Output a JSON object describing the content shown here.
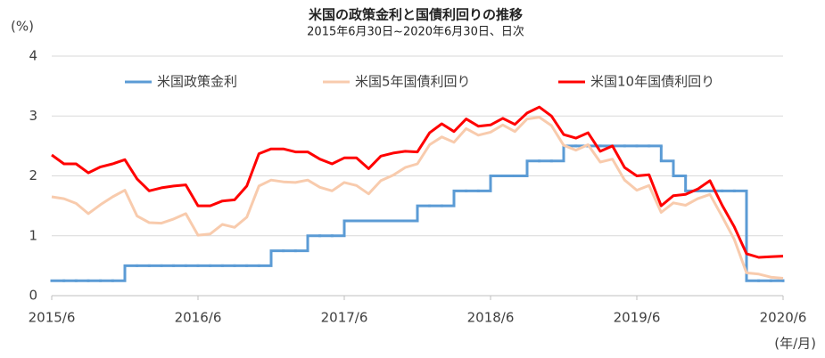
{
  "chart_data": {
    "type": "line",
    "title": "米国の政策金利と国債利回りの推移",
    "subtitle": "2015年6月30日~2020年6月30日、日次",
    "y_unit_label": "(%)",
    "x_unit_label": "(年/月)",
    "x": [
      "2015/6",
      null,
      null,
      null,
      null,
      null,
      null,
      null,
      null,
      null,
      null,
      null,
      "2016/6",
      null,
      null,
      null,
      null,
      null,
      null,
      null,
      null,
      null,
      null,
      null,
      "2017/6",
      null,
      null,
      null,
      null,
      null,
      null,
      null,
      null,
      null,
      null,
      null,
      "2018/6",
      null,
      null,
      null,
      null,
      null,
      null,
      null,
      null,
      null,
      null,
      null,
      "2019/6",
      null,
      null,
      null,
      null,
      null,
      null,
      null,
      null,
      null,
      null,
      null,
      "2020/6"
    ],
    "series": [
      {
        "name": "米国政策金利",
        "color": "#5b9bd5",
        "step": true,
        "values": [
          0.25,
          0.25,
          0.25,
          0.25,
          0.25,
          0.25,
          0.5,
          0.5,
          0.5,
          0.5,
          0.5,
          0.5,
          0.5,
          0.5,
          0.5,
          0.5,
          0.5,
          0.5,
          0.75,
          0.75,
          0.75,
          1.0,
          1.0,
          1.0,
          1.25,
          1.25,
          1.25,
          1.25,
          1.25,
          1.25,
          1.5,
          1.5,
          1.5,
          1.75,
          1.75,
          1.75,
          2.0,
          2.0,
          2.0,
          2.25,
          2.25,
          2.25,
          2.5,
          2.5,
          2.5,
          2.5,
          2.5,
          2.5,
          2.5,
          2.5,
          2.25,
          2.0,
          1.75,
          1.75,
          1.75,
          1.75,
          1.75,
          0.25,
          0.25,
          0.25,
          0.25
        ]
      },
      {
        "name": "米国5年国債利回り",
        "color": "#f8cbad",
        "values": [
          1.65,
          1.62,
          1.54,
          1.37,
          1.52,
          1.65,
          1.76,
          1.33,
          1.22,
          1.21,
          1.28,
          1.37,
          1.01,
          1.03,
          1.19,
          1.14,
          1.31,
          1.83,
          1.93,
          1.9,
          1.89,
          1.93,
          1.81,
          1.75,
          1.89,
          1.84,
          1.7,
          1.92,
          2.01,
          2.14,
          2.2,
          2.52,
          2.65,
          2.56,
          2.79,
          2.68,
          2.73,
          2.85,
          2.74,
          2.95,
          2.98,
          2.84,
          2.51,
          2.43,
          2.52,
          2.23,
          2.28,
          1.93,
          1.76,
          1.84,
          1.39,
          1.55,
          1.51,
          1.62,
          1.69,
          1.32,
          0.94,
          0.38,
          0.36,
          0.31,
          0.29
        ]
      },
      {
        "name": "米国10年国債利回り",
        "color": "#ff0000",
        "values": [
          2.35,
          2.2,
          2.2,
          2.05,
          2.15,
          2.2,
          2.27,
          1.95,
          1.75,
          1.8,
          1.83,
          1.85,
          1.5,
          1.5,
          1.58,
          1.6,
          1.83,
          2.37,
          2.45,
          2.45,
          2.4,
          2.4,
          2.28,
          2.2,
          2.3,
          2.3,
          2.12,
          2.33,
          2.38,
          2.41,
          2.4,
          2.72,
          2.87,
          2.74,
          2.95,
          2.83,
          2.85,
          2.96,
          2.86,
          3.05,
          3.15,
          3.0,
          2.69,
          2.63,
          2.72,
          2.41,
          2.5,
          2.14,
          2.0,
          2.02,
          1.5,
          1.67,
          1.69,
          1.78,
          1.92,
          1.51,
          1.15,
          0.7,
          0.64,
          0.65,
          0.66
        ]
      }
    ],
    "ylim": [
      0,
      4
    ],
    "yticks": [
      0,
      1,
      2,
      3,
      4
    ],
    "grid": true
  }
}
